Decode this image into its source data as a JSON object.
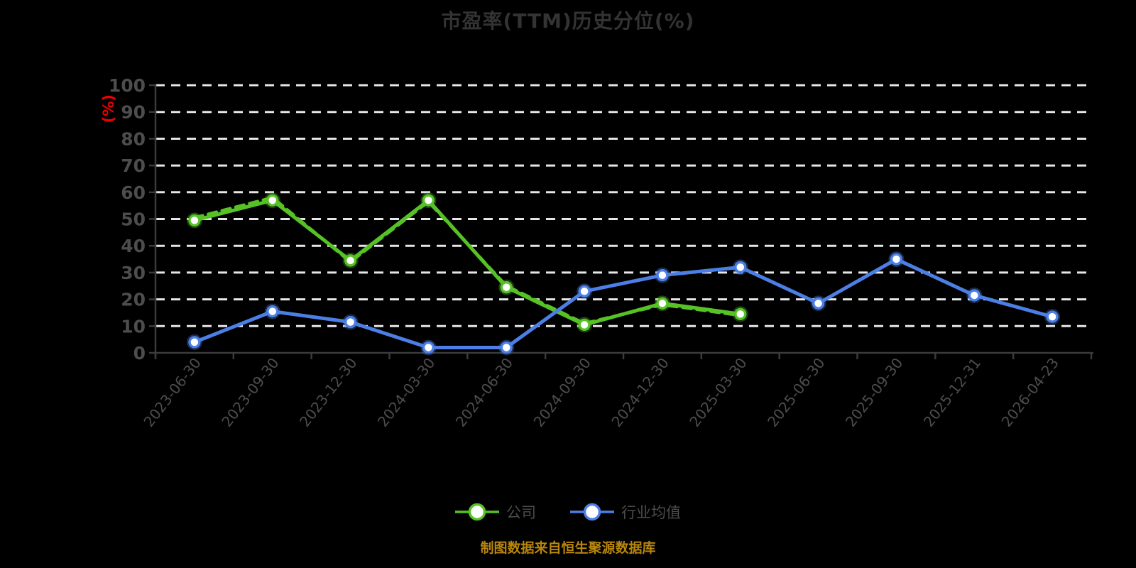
{
  "title": "市盈率(TTM)历史分位(%)",
  "source_note": "制图数据来自恒生聚源数据库",
  "chart_data": {
    "type": "line",
    "title": "市盈率(TTM)历史分位(%)",
    "xlabel": "",
    "ylabel": "(%)",
    "ylim": [
      0,
      100
    ],
    "y_ticks": [
      0,
      10,
      20,
      30,
      40,
      50,
      60,
      70,
      80,
      90,
      100
    ],
    "grid": "dashed-horizontal",
    "legend_position": "bottom",
    "categories": [
      "2023-06-30",
      "2023-09-30",
      "2023-12-30",
      "2024-03-30",
      "2024-06-30",
      "2024-09-30",
      "2024-12-30",
      "2025-03-30",
      "2025-06-30",
      "2025-09-30",
      "2025-12-31",
      "2026-04-23"
    ],
    "series": [
      {
        "key": "company",
        "name": "公司",
        "color": "#56c226",
        "line_style": "solid",
        "marker": "circle",
        "values": [
          49.5,
          57,
          34.5,
          57,
          24.5,
          10.5,
          18.5,
          14.5,
          null,
          null,
          null,
          null
        ]
      },
      {
        "key": "company-dashed",
        "name": "公司",
        "color": "#56c226",
        "line_style": "dashed",
        "marker": "none",
        "values": [
          50.5,
          58,
          34,
          56.5,
          25,
          11,
          18,
          14,
          null,
          null,
          null,
          null
        ]
      },
      {
        "key": "industry-avg",
        "name": "行业均值",
        "color": "#4c7fe6",
        "line_style": "solid",
        "marker": "circle",
        "values": [
          4,
          15.5,
          11.5,
          2,
          2,
          23,
          29,
          32,
          18.5,
          35,
          21.5,
          13.5
        ]
      }
    ],
    "legend": [
      {
        "key": "company",
        "label": "公司",
        "color": "#56c226"
      },
      {
        "key": "industry-avg",
        "label": "行业均值",
        "color": "#4c7fe6"
      }
    ]
  },
  "colors": {
    "background": "#000000",
    "title": "#333333",
    "axis_line": "#3b3b3b",
    "tick_label": "#4d4d4d",
    "grid_line": "#e6e6e6",
    "y_name": "#ec0000",
    "legend_text": "#4c4c4c",
    "source_note": "#b8860b"
  }
}
